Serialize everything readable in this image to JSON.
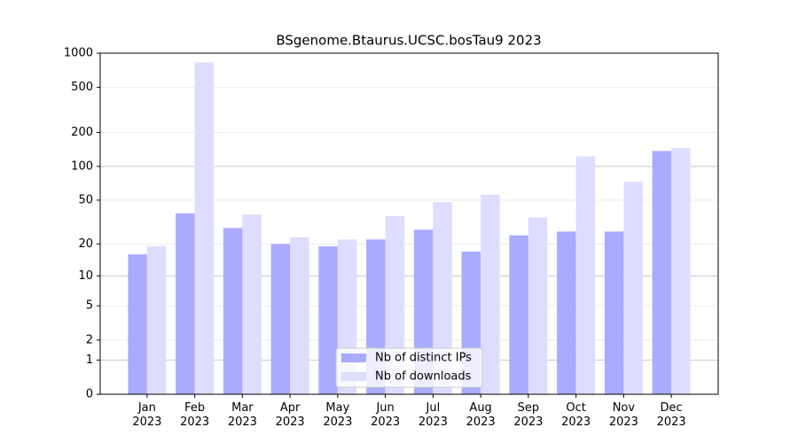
{
  "chart_data": {
    "type": "bar",
    "title": "BSgenome.Btaurus.UCSC.bosTau9 2023",
    "categories": [
      "Jan\n2023",
      "Feb\n2023",
      "Mar\n2023",
      "Apr\n2023",
      "May\n2023",
      "Jun\n2023",
      "Jul\n2023",
      "Aug\n2023",
      "Sep\n2023",
      "Oct\n2023",
      "Nov\n2023",
      "Dec\n2023"
    ],
    "series": [
      {
        "name": "Nb of distinct IPs",
        "color": "#aaaaff",
        "values": [
          16,
          38,
          28,
          20,
          19,
          22,
          27,
          17,
          24,
          26,
          26,
          137
        ]
      },
      {
        "name": "Nb of downloads",
        "color": "#ddddff",
        "values": [
          19,
          830,
          37,
          23,
          22,
          36,
          48,
          56,
          35,
          123,
          73,
          145
        ]
      }
    ],
    "yscale": "log1p",
    "ylim": [
      0,
      1000
    ],
    "yticks": [
      0,
      1,
      2,
      5,
      10,
      20,
      50,
      100,
      200,
      500,
      1000
    ],
    "grid": true,
    "legend": "lower center"
  }
}
